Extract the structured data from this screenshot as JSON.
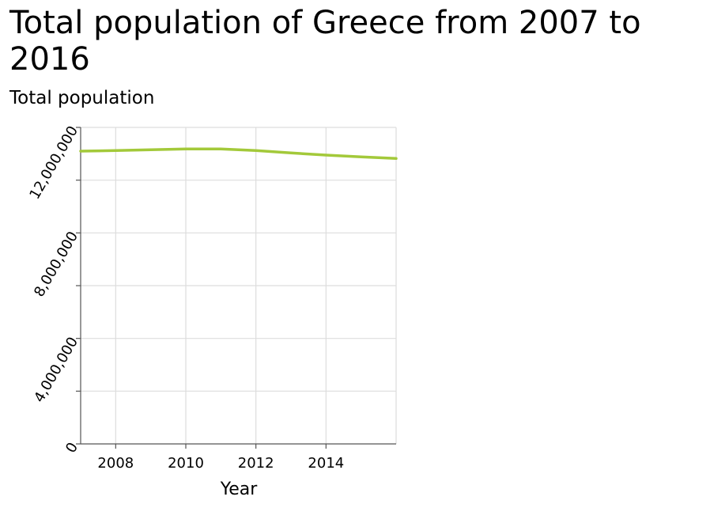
{
  "chart_data": {
    "type": "line",
    "title": "Total population of Greece from 2007 to 2016",
    "xlabel": "Year",
    "ylabel": "Total population",
    "xlim": [
      2007,
      2016
    ],
    "ylim": [
      0,
      12000000
    ],
    "x_ticks": [
      2008,
      2010,
      2012,
      2014
    ],
    "x_tick_labels": [
      "2008",
      "2010",
      "2012",
      "2014"
    ],
    "y_ticks": [
      0,
      4000000,
      8000000,
      12000000
    ],
    "y_tick_labels": [
      "0",
      "4,000,000",
      "8,000,000",
      "12,000,000"
    ],
    "grid": true,
    "series_color": "#a3c93a",
    "x": [
      2007,
      2008,
      2009,
      2010,
      2011,
      2012,
      2013,
      2014,
      2015,
      2016
    ],
    "series": [
      {
        "values": [
          11100000,
          11120000,
          11150000,
          11180000,
          11180000,
          11120000,
          11030000,
          10950000,
          10880000,
          10820000
        ]
      }
    ]
  }
}
